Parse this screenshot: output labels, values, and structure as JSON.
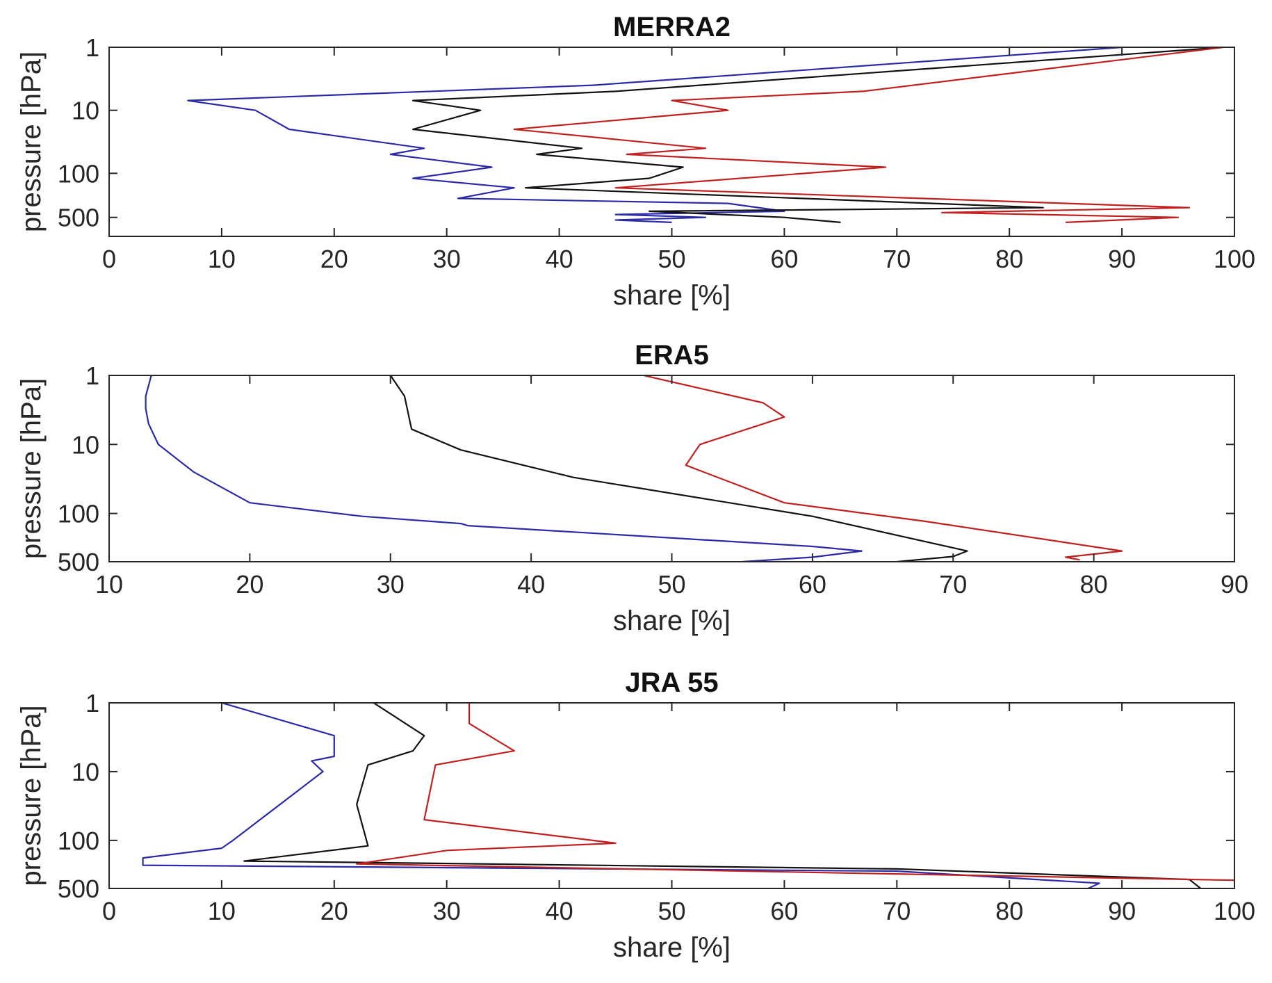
{
  "chart_data": [
    {
      "type": "line",
      "title": "MERRA2",
      "xlabel": "share [%]",
      "ylabel": "pressure [hPa]",
      "xlim": [
        0,
        100
      ],
      "xticks": [
        0,
        10,
        20,
        30,
        40,
        50,
        60,
        70,
        80,
        90,
        100
      ],
      "xtick_labels": [
        "0",
        "10",
        "20",
        "30",
        "40",
        "50",
        "60",
        "70",
        "80",
        "90",
        "100"
      ],
      "ylim": [
        1,
        1000
      ],
      "yscale": "log",
      "yreversed": true,
      "yticks": [
        1,
        10,
        100,
        500
      ],
      "ytick_labels": [
        "1",
        "10",
        "100",
        "500"
      ],
      "series": [
        {
          "name": "blue",
          "color": "#2a2aa8",
          "x": [
            90,
            43,
            7,
            13,
            16,
            28,
            25,
            34,
            27,
            36,
            31,
            55,
            60,
            45,
            53,
            45,
            50
          ],
          "p": [
            1,
            4,
            7,
            10,
            20,
            40,
            50,
            80,
            120,
            170,
            250,
            300,
            400,
            450,
            500,
            550,
            600
          ]
        },
        {
          "name": "black",
          "color": "#111111",
          "x": [
            99,
            45,
            27,
            33,
            27,
            42,
            38,
            51,
            48,
            37,
            83,
            48,
            60,
            65
          ],
          "p": [
            1,
            5,
            7,
            10,
            20,
            40,
            50,
            80,
            120,
            170,
            350,
            400,
            500,
            600
          ]
        },
        {
          "name": "red",
          "color": "#c02020",
          "x": [
            99,
            67,
            50,
            55,
            36,
            53,
            46,
            69,
            45,
            96,
            74,
            95,
            85
          ],
          "p": [
            1,
            5,
            7,
            10,
            20,
            40,
            50,
            80,
            170,
            350,
            420,
            500,
            600
          ]
        }
      ]
    },
    {
      "type": "line",
      "title": "ERA5",
      "xlabel": "share [%]",
      "ylabel": "pressure [hPa]",
      "xlim": [
        10,
        90
      ],
      "xticks": [
        10,
        20,
        30,
        40,
        50,
        60,
        70,
        80,
        90
      ],
      "xtick_labels": [
        "10",
        "20",
        "30",
        "40",
        "50",
        "60",
        "70",
        "80",
        "90"
      ],
      "ylim": [
        1,
        500
      ],
      "yscale": "log",
      "yreversed": true,
      "yticks": [
        1,
        10,
        100,
        500
      ],
      "ytick_labels": [
        "1",
        "10",
        "100",
        "500"
      ],
      "series": [
        {
          "name": "blue",
          "color": "#2a2aa8",
          "x": [
            13,
            12.6,
            12.6,
            12.8,
            13.5,
            16,
            20,
            28,
            35,
            35.5,
            60,
            63.5,
            60,
            55
          ],
          "p": [
            1,
            2,
            3,
            5,
            10,
            25,
            70,
            110,
            140,
            150,
            300,
            350,
            430,
            500
          ]
        },
        {
          "name": "black",
          "color": "#111111",
          "x": [
            30,
            31,
            31.5,
            35,
            43,
            60,
            71,
            70,
            66
          ],
          "p": [
            1,
            2,
            6,
            12,
            30,
            110,
            350,
            420,
            500
          ]
        },
        {
          "name": "red",
          "color": "#c02020",
          "x": [
            48,
            56.5,
            58,
            52,
            51,
            58,
            68,
            82,
            78,
            79
          ],
          "p": [
            1,
            2.5,
            4,
            10,
            20,
            70,
            130,
            350,
            430,
            470
          ]
        }
      ]
    },
    {
      "type": "line",
      "title": "JRA 55",
      "xlabel": "share [%]",
      "ylabel": "pressure [hPa]",
      "xlim": [
        0,
        100
      ],
      "xticks": [
        0,
        10,
        20,
        30,
        40,
        50,
        60,
        70,
        80,
        90,
        100
      ],
      "xtick_labels": [
        "0",
        "10",
        "20",
        "30",
        "40",
        "50",
        "60",
        "70",
        "80",
        "90",
        "100"
      ],
      "ylim": [
        1,
        500
      ],
      "yscale": "log",
      "yreversed": true,
      "yticks": [
        1,
        10,
        100,
        500
      ],
      "ytick_labels": [
        "1",
        "10",
        "100",
        "500"
      ],
      "series": [
        {
          "name": "blue",
          "color": "#2a2aa8",
          "x": [
            10,
            20,
            20,
            18,
            19,
            11,
            10,
            3,
            3,
            70,
            88,
            87
          ],
          "p": [
            1,
            3,
            6,
            7,
            10,
            100,
            130,
            180,
            230,
            280,
            420,
            500
          ]
        },
        {
          "name": "black",
          "color": "#111111",
          "x": [
            23.5,
            28,
            27,
            23,
            22,
            23,
            12,
            70,
            96,
            97
          ],
          "p": [
            1,
            3,
            5,
            8,
            30,
            120,
            200,
            260,
            370,
            500
          ]
        },
        {
          "name": "red",
          "color": "#c02020",
          "x": [
            32,
            32,
            36,
            29,
            28,
            45,
            30,
            22,
            100,
            100
          ],
          "p": [
            1,
            2,
            5,
            8,
            50,
            110,
            140,
            220,
            380,
            400
          ]
        }
      ]
    }
  ]
}
